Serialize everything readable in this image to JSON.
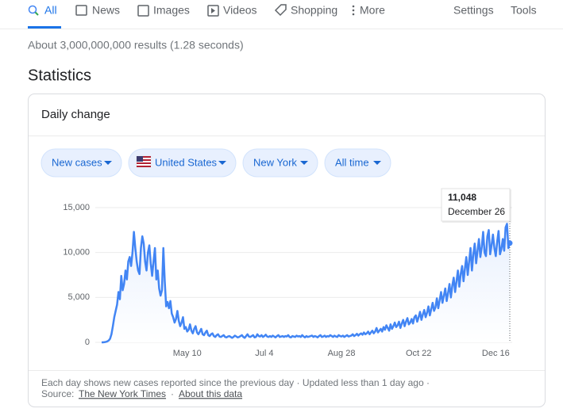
{
  "nav": {
    "tabs": [
      "All",
      "News",
      "Images",
      "Videos",
      "Shopping",
      "More"
    ],
    "tools": [
      "Settings",
      "Tools"
    ]
  },
  "results_stats": "About 3,000,000,000 results (1.28 seconds)",
  "section_title": "Statistics",
  "card": {
    "title": "Daily change",
    "filters": [
      "New cases",
      "United States",
      "New York",
      "All time"
    ],
    "footer": {
      "note": "Each day shows new cases reported since the previous day · Updated less than 1 day ago ·",
      "source_label": "Source:",
      "source": "The New York Times",
      "separator": "·",
      "about": "About this data"
    }
  },
  "chart_data": {
    "type": "line",
    "color": "#4285f4",
    "grid": true,
    "ylim": [
      0,
      15000
    ],
    "yticks": [
      0,
      {
        "value": 5000,
        "label": "5,000"
      },
      {
        "value": 10000,
        "label": "10,000"
      },
      {
        "value": 15000,
        "label": "15,000"
      }
    ],
    "tooltip": {
      "value": 11048,
      "label": "11,048",
      "date": "December 26"
    },
    "categories": [
      null,
      null,
      null,
      null,
      null,
      null,
      null,
      null,
      null,
      null,
      null,
      null,
      null,
      null,
      null,
      null,
      null,
      null,
      null,
      null,
      null,
      null,
      null,
      null,
      null,
      null,
      null,
      null,
      null,
      null,
      null,
      null,
      null,
      null,
      null,
      null,
      null,
      null,
      null,
      null,
      null,
      null,
      null,
      null,
      null,
      null,
      null,
      null,
      null,
      null,
      null,
      null,
      null,
      null,
      null,
      null,
      null,
      null,
      null,
      null,
      null,
      "May 10",
      null,
      null,
      null,
      null,
      null,
      null,
      null,
      null,
      null,
      null,
      null,
      null,
      null,
      null,
      null,
      null,
      null,
      null,
      null,
      null,
      null,
      null,
      null,
      null,
      null,
      null,
      null,
      null,
      null,
      null,
      null,
      null,
      null,
      null,
      null,
      null,
      null,
      null,
      null,
      null,
      null,
      null,
      null,
      null,
      null,
      null,
      null,
      null,
      null,
      null,
      null,
      null,
      null,
      null,
      "Jul 4",
      null,
      null,
      null,
      null,
      null,
      null,
      null,
      null,
      null,
      null,
      null,
      null,
      null,
      null,
      null,
      null,
      null,
      null,
      null,
      null,
      null,
      null,
      null,
      null,
      null,
      null,
      null,
      null,
      null,
      null,
      null,
      null,
      null,
      null,
      null,
      null,
      null,
      null,
      null,
      null,
      null,
      null,
      null,
      null,
      null,
      null,
      null,
      null,
      null,
      null,
      null,
      null,
      null,
      null,
      "Aug 28",
      null,
      null,
      null,
      null,
      null,
      null,
      null,
      null,
      null,
      null,
      null,
      null,
      null,
      null,
      null,
      null,
      null,
      null,
      null,
      null,
      null,
      null,
      null,
      null,
      null,
      null,
      null,
      null,
      null,
      null,
      null,
      null,
      null,
      null,
      null,
      null,
      null,
      null,
      null,
      null,
      null,
      null,
      null,
      null,
      null,
      null,
      null,
      null,
      null,
      null,
      null,
      null,
      null,
      null,
      "Oct 22",
      null,
      null,
      null,
      null,
      null,
      null,
      null,
      null,
      null,
      null,
      null,
      null,
      null,
      null,
      null,
      null,
      null,
      null,
      null,
      null,
      null,
      null,
      null,
      null,
      null,
      null,
      null,
      null,
      null,
      null,
      null,
      null,
      null,
      null,
      null,
      null,
      null,
      null,
      null,
      null,
      null,
      null,
      null,
      null,
      null,
      null,
      null,
      null,
      null,
      null,
      null,
      null,
      null,
      null,
      "Dec 16",
      null,
      null,
      null,
      null,
      null,
      null,
      null,
      null,
      null,
      null
    ],
    "series": [
      {
        "name": "New cases",
        "color": "#4285f4",
        "values": [
          0,
          0,
          20,
          50,
          100,
          200,
          400,
          900,
          1800,
          2800,
          3500,
          4200,
          5600,
          4800,
          7400,
          5800,
          6500,
          8000,
          7000,
          9000,
          9500,
          8500,
          10000,
          12300,
          10500,
          9000,
          8000,
          7600,
          10500,
          11800,
          11000,
          9000,
          8000,
          10000,
          10800,
          8800,
          7400,
          9000,
          10500,
          7000,
          8000,
          6000,
          5200,
          5800,
          10500,
          6800,
          4000,
          4500,
          3800,
          4600,
          3200,
          2800,
          2200,
          2600,
          3500,
          2400,
          1800,
          2200,
          2800,
          1500,
          1700,
          1200,
          1400,
          2000,
          1300,
          1000,
          1500,
          1800,
          1100,
          900,
          1200,
          1500,
          900,
          800,
          1100,
          1300,
          800,
          700,
          900,
          1000,
          700,
          600,
          800,
          900,
          650,
          600,
          700,
          800,
          600,
          550,
          650,
          700,
          600,
          500,
          600,
          750,
          650,
          550,
          600,
          700,
          800,
          600,
          500,
          700,
          900,
          650,
          600,
          700,
          800,
          550,
          600,
          900,
          700,
          650,
          800,
          600,
          700,
          850,
          650,
          600,
          700,
          600,
          750,
          650,
          550,
          700,
          800,
          600,
          650,
          700,
          600,
          700,
          650,
          800,
          600,
          550,
          700,
          650,
          600,
          750,
          650,
          700,
          600,
          800,
          650,
          550,
          700,
          600,
          650,
          700,
          750,
          600,
          700,
          650,
          550,
          700,
          800,
          600,
          650,
          750,
          600,
          700,
          650,
          800,
          700,
          600,
          750,
          650,
          600,
          800,
          700,
          650,
          750,
          600,
          700,
          800,
          650,
          700,
          750,
          900,
          700,
          800,
          950,
          750,
          900,
          1000,
          850,
          1100,
          900,
          1000,
          1200,
          900,
          1100,
          1300,
          1000,
          1200,
          1600,
          1100,
          1300,
          1500,
          1200,
          1700,
          1400,
          1900,
          1600,
          1300,
          2000,
          1500,
          1800,
          2200,
          1700,
          1900,
          2300,
          1600,
          2100,
          2500,
          1800,
          2300,
          2700,
          2000,
          2200,
          2600,
          2100,
          2800,
          3000,
          2300,
          2800,
          3400,
          2500,
          3100,
          3600,
          2800,
          3300,
          4000,
          3000,
          3700,
          4400,
          3500,
          3900,
          4900,
          3800,
          4700,
          5600,
          4400,
          5200,
          6000,
          4600,
          5500,
          6500,
          5000,
          6300,
          7200,
          5600,
          6800,
          8000,
          6200,
          7600,
          8500,
          6800,
          8200,
          9500,
          7500,
          9000,
          10500,
          8000,
          9800,
          11000,
          8800,
          10200,
          11500,
          9500,
          10600,
          12300,
          10000,
          9600,
          11800,
          12500,
          9800,
          10800,
          12000,
          10500,
          9600,
          11200,
          12400,
          9800,
          10400,
          11500,
          10200,
          12800,
          13200,
          10500,
          11048
        ]
      }
    ]
  }
}
